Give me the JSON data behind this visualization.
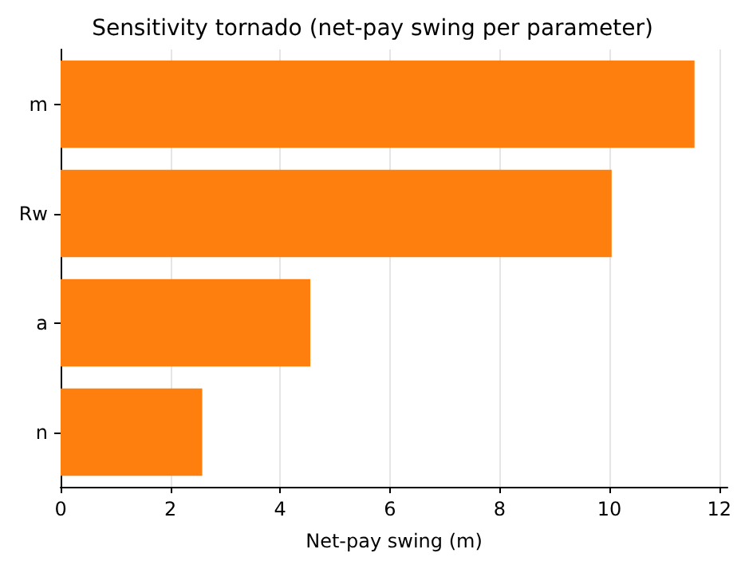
{
  "chart_data": {
    "type": "bar",
    "orientation": "horizontal",
    "title": "Sensitivity tornado (net-pay swing per parameter)",
    "xlabel": "Net-pay swing (m)",
    "categories": [
      "m",
      "Rw",
      "a",
      "n"
    ],
    "values": [
      11.55,
      10.04,
      4.55,
      2.58
    ],
    "color": "#ff7f0e",
    "xlim": [
      0,
      12.15
    ],
    "xticks": [
      0,
      2,
      4,
      6,
      8,
      10,
      12
    ],
    "grid": "x"
  }
}
